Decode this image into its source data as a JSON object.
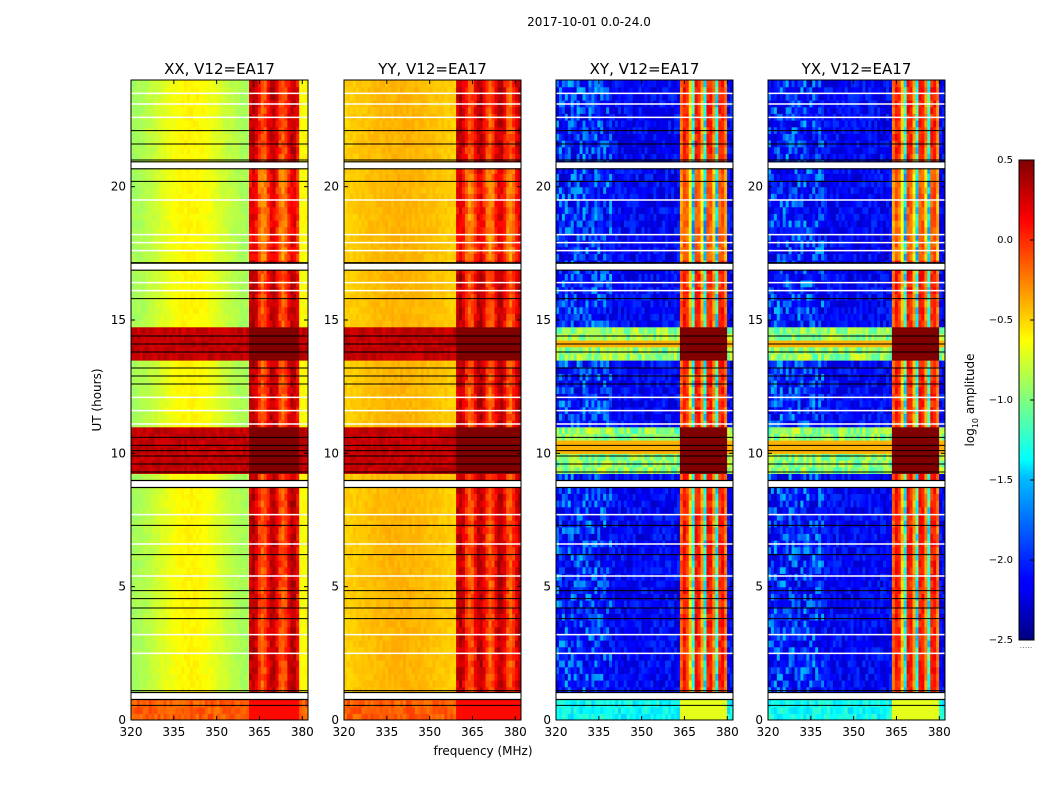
{
  "figure": {
    "suptitle": "2017-10-01 0.0-24.0",
    "xlabel": "frequency (MHz)",
    "ylabel": "UT (hours)",
    "colorbar_label": "log",
    "colorbar_label_sub": "10",
    "colorbar_label_rest": " amplitude",
    "colorbar_tick_labels": [
      "0.5",
      "0.0",
      "−0.5",
      "−1.0",
      "−1.5",
      "−2.0",
      "−2.5"
    ],
    "colorbar_ticks": [
      0.5,
      0.0,
      -0.5,
      -1.0,
      -1.5,
      -2.0,
      -2.5
    ],
    "colorbar_range": [
      -2.5,
      0.5
    ],
    "colorbar_minor_text": "....."
  },
  "chart_data": [
    {
      "type": "heatmap",
      "title": "XX, V12=EA17",
      "pol": "XX",
      "xlim": [
        320,
        382
      ],
      "ylim": [
        0,
        24
      ],
      "xticks": [
        320,
        335,
        350,
        365,
        380
      ],
      "xtick_labels": [
        "320",
        "335",
        "350",
        "365",
        "380"
      ],
      "yticks": [
        0,
        5,
        10,
        15,
        20
      ],
      "ytick_labels": [
        "0",
        "5",
        "10",
        "15",
        "20"
      ],
      "flux_band_mhz": [
        361,
        379
      ],
      "approx_log10_amplitude_range": [
        -1.0,
        0.5
      ]
    },
    {
      "type": "heatmap",
      "title": "YY, V12=EA17",
      "pol": "YY",
      "xlim": [
        320,
        382
      ],
      "ylim": [
        0,
        24
      ],
      "xticks": [
        320,
        335,
        350,
        365,
        380
      ],
      "xtick_labels": [
        "320",
        "335",
        "350",
        "365",
        "380"
      ],
      "yticks": [
        0,
        5,
        10,
        15,
        20
      ],
      "ytick_labels": [
        "0",
        "5",
        "10",
        "15",
        "20"
      ],
      "flux_band_mhz": [
        359,
        382
      ],
      "approx_log10_amplitude_range": [
        -0.8,
        0.5
      ]
    },
    {
      "type": "heatmap",
      "title": "XY, V12=EA17",
      "pol": "XY",
      "xlim": [
        320,
        382
      ],
      "ylim": [
        0,
        24
      ],
      "xticks": [
        320,
        335,
        350,
        365,
        380
      ],
      "xtick_labels": [
        "320",
        "335",
        "350",
        "365",
        "380"
      ],
      "yticks": [
        0,
        5,
        10,
        15,
        20
      ],
      "ytick_labels": [
        "0",
        "5",
        "10",
        "15",
        "20"
      ],
      "flux_band_mhz": [
        363,
        380
      ],
      "approx_log10_amplitude_range": [
        -2.5,
        0.5
      ]
    },
    {
      "type": "heatmap",
      "title": "YX, V12=EA17",
      "pol": "YX",
      "xlim": [
        320,
        382
      ],
      "ylim": [
        0,
        24
      ],
      "xticks": [
        320,
        335,
        350,
        365,
        380
      ],
      "xtick_labels": [
        "320",
        "335",
        "350",
        "365",
        "380"
      ],
      "yticks": [
        0,
        5,
        10,
        15,
        20
      ],
      "ytick_labels": [
        "0",
        "5",
        "10",
        "15",
        "20"
      ],
      "flux_band_mhz": [
        363,
        380
      ],
      "approx_log10_amplitude_range": [
        -2.5,
        0.5
      ]
    }
  ],
  "flagged_ut_hours": {
    "thick_gaps": [
      0.9,
      8.85,
      17.0,
      20.8
    ],
    "black_lines": [
      0.55,
      1.1,
      3.8,
      4.2,
      4.55,
      4.85,
      6.2,
      7.3,
      8.8,
      9.3,
      9.6,
      9.9,
      10.1,
      10.3,
      10.6,
      12.6,
      12.9,
      13.2,
      13.8,
      14.1,
      14.4,
      15.8,
      17.15,
      20.2,
      21.0,
      21.6,
      22.1
    ],
    "white_lines": [
      2.5,
      3.2,
      5.4,
      6.6,
      7.7,
      11.1,
      11.6,
      12.1,
      16.1,
      16.4,
      17.6,
      17.9,
      18.2,
      19.5,
      22.6,
      23.1,
      23.5
    ]
  },
  "colors": {
    "jet": [
      "#00007f",
      "#0000ff",
      "#007fff",
      "#00ffff",
      "#7fff7f",
      "#ffff00",
      "#ff7f00",
      "#ff0000",
      "#7f0000"
    ]
  }
}
